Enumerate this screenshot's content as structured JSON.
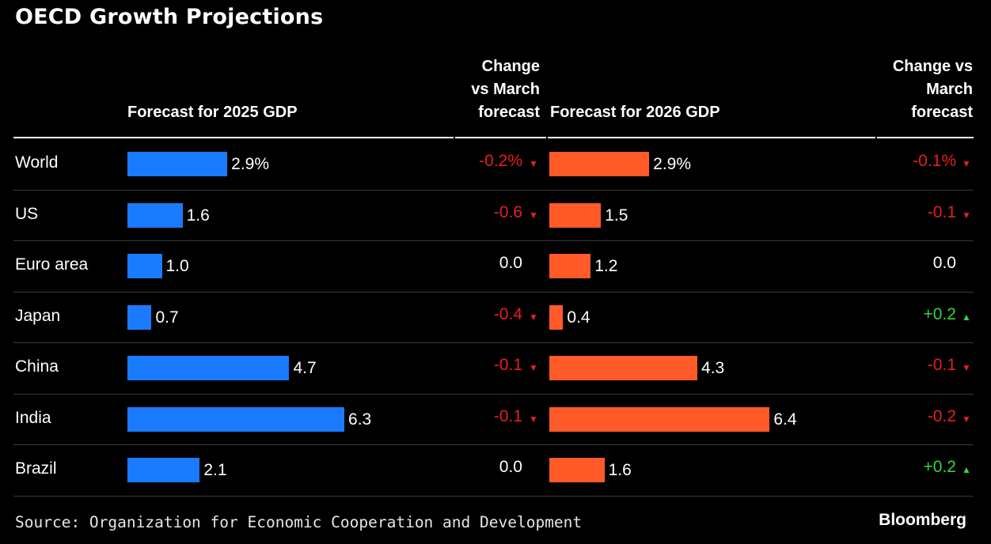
{
  "chart_data": {
    "type": "table",
    "title": "OECD Growth Projections",
    "columns": [
      "Forecast for 2025 GDP",
      "Change vs March forecast",
      "Forecast for 2026 GDP",
      "Change vs March forecast"
    ],
    "column_header_lines": {
      "change_2025": [
        "Change",
        "vs March",
        "forecast"
      ],
      "change_2026": [
        "Change vs",
        "March",
        "forecast"
      ]
    },
    "rows": [
      {
        "region": "World",
        "gdp2025": 2.9,
        "gdp2025_label": "2.9%",
        "chg2025": "-0.2%",
        "dir2025": "down",
        "gdp2026": 2.9,
        "gdp2026_label": "2.9%",
        "chg2026": "-0.1%",
        "dir2026": "down"
      },
      {
        "region": "US",
        "gdp2025": 1.6,
        "gdp2025_label": "1.6",
        "chg2025": "-0.6",
        "dir2025": "down",
        "gdp2026": 1.5,
        "gdp2026_label": "1.5",
        "chg2026": "-0.1",
        "dir2026": "down"
      },
      {
        "region": "Euro area",
        "gdp2025": 1.0,
        "gdp2025_label": "1.0",
        "chg2025": "0.0",
        "dir2025": "none",
        "gdp2026": 1.2,
        "gdp2026_label": "1.2",
        "chg2026": "0.0",
        "dir2026": "none"
      },
      {
        "region": "Japan",
        "gdp2025": 0.7,
        "gdp2025_label": "0.7",
        "chg2025": "-0.4",
        "dir2025": "down",
        "gdp2026": 0.4,
        "gdp2026_label": "0.4",
        "chg2026": "+0.2",
        "dir2026": "up"
      },
      {
        "region": "China",
        "gdp2025": 4.7,
        "gdp2025_label": "4.7",
        "chg2025": "-0.1",
        "dir2025": "down",
        "gdp2026": 4.3,
        "gdp2026_label": "4.3",
        "chg2026": "-0.1",
        "dir2026": "down"
      },
      {
        "region": "India",
        "gdp2025": 6.3,
        "gdp2025_label": "6.3",
        "chg2025": "-0.1",
        "dir2025": "down",
        "gdp2026": 6.4,
        "gdp2026_label": "6.4",
        "chg2026": "-0.2",
        "dir2026": "down"
      },
      {
        "region": "Brazil",
        "gdp2025": 2.1,
        "gdp2025_label": "2.1",
        "chg2025": "0.0",
        "dir2025": "none",
        "gdp2026": 1.6,
        "gdp2026_label": "1.6",
        "chg2026": "+0.2",
        "dir2026": "up"
      }
    ],
    "colors": {
      "bar2025": "#1a7bff",
      "bar2026": "#ff5a27",
      "negative": "#e61f1f",
      "positive": "#38d43a",
      "neutral": "#ffffff"
    }
  },
  "footer": {
    "source": "Source: Organization for Economic Cooperation and Development",
    "brand": "Bloomberg"
  }
}
